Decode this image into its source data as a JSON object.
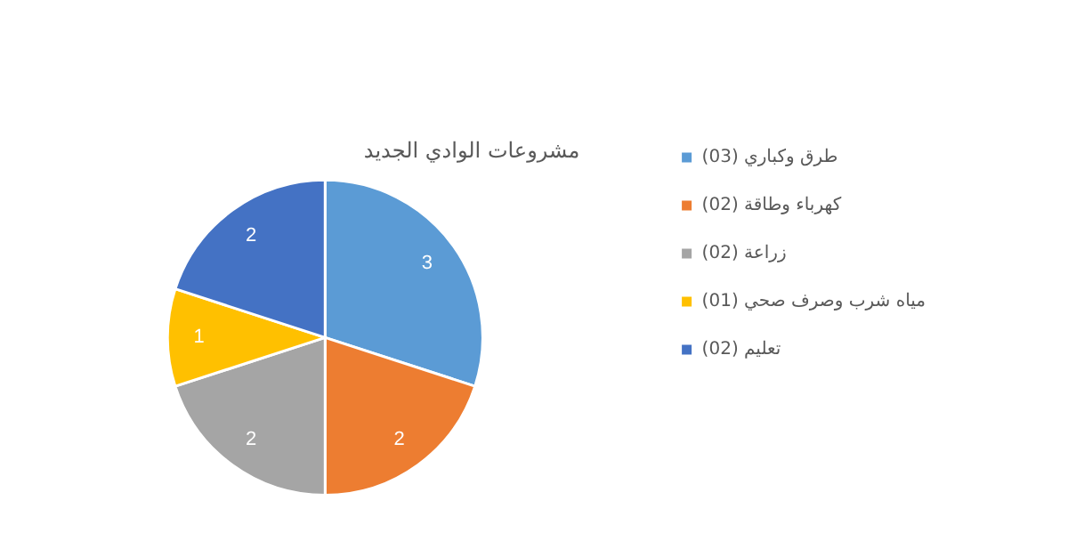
{
  "chart_data": {
    "type": "pie",
    "title": "مشروعات الوادي الجديد",
    "categories": [
      "طرق وكباري (03)",
      "كهرباء وطاقة (02)",
      "زراعة (02)",
      "مياه شرب وصرف صحي (01)",
      "تعليم (02)"
    ],
    "values": [
      3,
      2,
      2,
      1,
      2
    ],
    "colors": [
      "#5b9bd5",
      "#ed7d31",
      "#a5a5a5",
      "#ffc000",
      "#4472c4"
    ],
    "data_labels": true,
    "legend": "right"
  }
}
